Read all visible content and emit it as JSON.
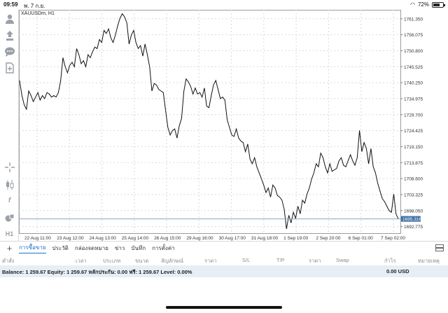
{
  "status_bar": {
    "time": "09:59",
    "date": "พ. 7 ก.ย.",
    "battery": "72%",
    "battery_level": 0.72
  },
  "toolbar": {
    "tools": [
      {
        "name": "account-icon"
      },
      {
        "name": "trade-icon"
      },
      {
        "name": "chat-icon"
      },
      {
        "name": "new-order-icon"
      },
      {
        "name": "crosshair-icon"
      },
      {
        "name": "candles-icon"
      },
      {
        "name": "indicator-icon",
        "label": "f"
      },
      {
        "name": "objects-icon"
      },
      {
        "name": "timeframe-icon",
        "label": "H1"
      }
    ]
  },
  "chart": {
    "symbol": "XAUUSDm, H1",
    "current_price_label": "1695.316",
    "chart_data": {
      "type": "line",
      "symbol": "XAUUSDm",
      "timeframe": "H1",
      "y_ticks": [
        "1761.350",
        "1756.075",
        "1750.800",
        "1745.525",
        "1740.250",
        "1734.975",
        "1729.700",
        "1724.425",
        "1719.150",
        "1713.875",
        "1708.600",
        "1703.325",
        "1698.050",
        "1692.775"
      ],
      "x_ticks": [
        "22 Aug 11:00",
        "23 Aug 12:00",
        "24 Aug 13:00",
        "25 Aug 14:00",
        "26 Aug 15:00",
        "29 Aug 16:00",
        "30 Aug 17:00",
        "31 Aug 18:00",
        "1 Sep 19:00",
        "2 Sep 20:00",
        "6 Sep 01:00",
        "7 Sep 02:00"
      ],
      "ylim": [
        1690.6,
        1764.3
      ],
      "current_price": 1695.316,
      "grid": true,
      "series": [
        {
          "values": [
            1741.0,
            1736.0,
            1733.0,
            1731.5,
            1737.5,
            1736.0,
            1734.0,
            1735.5,
            1737.0,
            1734.5,
            1736.0,
            1735.0,
            1737.0,
            1736.5,
            1735.5,
            1736.0,
            1735.5,
            1737.0,
            1741.0,
            1748.5,
            1745.5,
            1743.5,
            1746.0,
            1747.0,
            1745.5,
            1751.5,
            1749.5,
            1746.5,
            1747.5,
            1745.5,
            1749.5,
            1748.5,
            1750.5,
            1752.0,
            1751.5,
            1754.5,
            1753.5,
            1757.5,
            1756.5,
            1758.0,
            1755.0,
            1753.5,
            1756.0,
            1759.0,
            1761.5,
            1763.0,
            1762.0,
            1760.0,
            1753.0,
            1756.0,
            1757.5,
            1753.5,
            1751.5,
            1752.5,
            1749.0,
            1753.0,
            1749.5,
            1745.5,
            1737.5,
            1740.0,
            1739.5,
            1738.0,
            1737.5,
            1737.0,
            1731.0,
            1725.5,
            1723.0,
            1724.5,
            1725.0,
            1722.0,
            1726.0,
            1728.5,
            1737.5,
            1741.5,
            1740.5,
            1739.0,
            1736.5,
            1738.5,
            1736.5,
            1737.0,
            1735.5,
            1738.5,
            1732.5,
            1732.0,
            1736.0,
            1739.5,
            1741.0,
            1738.0,
            1735.0,
            1735.5,
            1734.5,
            1728.0,
            1725.5,
            1723.0,
            1722.5,
            1725.0,
            1722.0,
            1721.0,
            1720.5,
            1717.5,
            1720.0,
            1715.0,
            1713.5,
            1715.5,
            1712.5,
            1710.5,
            1708.5,
            1706.5,
            1704.0,
            1705.5,
            1702.5,
            1706.5,
            1705.5,
            1703.0,
            1702.5,
            1701.5,
            1698.5,
            1692.0,
            1696.5,
            1694.0,
            1697.5,
            1695.5,
            1699.5,
            1697.0,
            1701.5,
            1700.5,
            1703.5,
            1705.5,
            1708.5,
            1710.5,
            1713.5,
            1712.5,
            1717.0,
            1715.5,
            1712.5,
            1710.5,
            1713.5,
            1711.0,
            1711.5,
            1712.0,
            1714.5,
            1715.5,
            1713.0,
            1712.5,
            1714.5,
            1716.5,
            1714.5,
            1713.0,
            1715.5,
            1724.5,
            1717.5,
            1720.5,
            1718.5,
            1713.5,
            1718.5,
            1712.5,
            1710.5,
            1707.0,
            1704.5,
            1702.0,
            1701.0,
            1699.5,
            1698.0,
            1697.5,
            1703.5,
            1697.0,
            1695.3
          ]
        }
      ]
    }
  },
  "bottom_tabs": {
    "items": [
      "การซื้อขาย",
      "ประวัติ",
      "กล่องจดหมาย",
      "ข่าว",
      "บันทึก",
      "การตั้งค่า"
    ],
    "active": 0
  },
  "columns": [
    "คำสั่ง",
    "เวลา",
    "ประเภท",
    "ขนาด",
    "สัญลักษณ์",
    "ราคา",
    "S/L",
    "T/P",
    "ราคา",
    "Swap",
    "กำไร",
    "หมายเหตุ"
  ],
  "account": {
    "summary": "Balance: 1 259.67 Equity: 1 259.67 หลักประกัน: 0.00 ฟรี: 1 259.67 Level: 0.00%",
    "profit": "0.00",
    "currency": "USD",
    "profit_text": "0.00  USD"
  },
  "colors": {
    "accent": "#1c6fd0",
    "price_tag": "#3f6fa6",
    "line": "#111111",
    "grid": "#d9d9d9",
    "balance_bg": "#e6eef6"
  }
}
